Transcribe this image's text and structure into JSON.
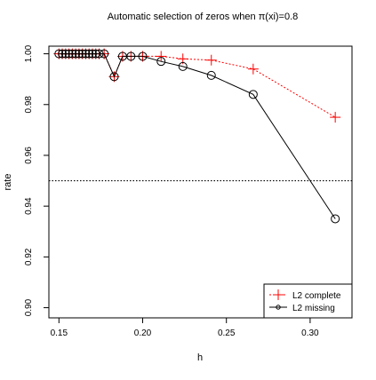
{
  "chart_data": {
    "type": "line",
    "title": "Automatic selection of zeros when π(xi)=0.8",
    "xlabel": "h",
    "ylabel": "rate",
    "xlim": [
      0.144,
      0.325
    ],
    "ylim": [
      0.896,
      1.003
    ],
    "x_ticks": [
      {
        "value": 0.15,
        "label": "0.15"
      },
      {
        "value": 0.2,
        "label": "0.20"
      },
      {
        "value": 0.25,
        "label": "0.25"
      },
      {
        "value": 0.3,
        "label": "0.30"
      }
    ],
    "y_ticks": [
      {
        "value": 0.9,
        "label": "0.90"
      },
      {
        "value": 0.92,
        "label": "0.92"
      },
      {
        "value": 0.94,
        "label": "0.94"
      },
      {
        "value": 0.96,
        "label": "0.96"
      },
      {
        "value": 0.98,
        "label": "0.98"
      },
      {
        "value": 1.0,
        "label": "1.00"
      }
    ],
    "reference_line": {
      "y": 0.95,
      "style": "dotted"
    },
    "legend": {
      "position": "bottom-right"
    },
    "grid": false,
    "series": [
      {
        "name": "L2 complete",
        "color": "#ff0000",
        "line_style": "dotted",
        "marker": "plus",
        "x": [
          0.15,
          0.152,
          0.154,
          0.156,
          0.158,
          0.16,
          0.162,
          0.164,
          0.166,
          0.168,
          0.17,
          0.172,
          0.174,
          0.177,
          0.183,
          0.188,
          0.193,
          0.2,
          0.211,
          0.224,
          0.241,
          0.266,
          0.315
        ],
        "y": [
          1.0,
          1.0,
          1.0,
          1.0,
          1.0,
          1.0,
          1.0,
          1.0,
          1.0,
          1.0,
          1.0,
          1.0,
          1.0,
          1.0,
          0.991,
          0.999,
          0.999,
          0.999,
          0.999,
          0.998,
          0.9975,
          0.994,
          0.975
        ]
      },
      {
        "name": "L2 missing",
        "color": "#000000",
        "line_style": "solid",
        "marker": "circle",
        "x": [
          0.15,
          0.152,
          0.154,
          0.156,
          0.158,
          0.16,
          0.162,
          0.164,
          0.166,
          0.168,
          0.17,
          0.172,
          0.174,
          0.177,
          0.183,
          0.188,
          0.193,
          0.2,
          0.211,
          0.224,
          0.241,
          0.266,
          0.315
        ],
        "y": [
          1.0,
          1.0,
          1.0,
          1.0,
          1.0,
          1.0,
          1.0,
          1.0,
          1.0,
          1.0,
          1.0,
          1.0,
          1.0,
          1.0,
          0.991,
          0.999,
          0.999,
          0.999,
          0.997,
          0.995,
          0.9915,
          0.984,
          0.935
        ]
      }
    ]
  }
}
